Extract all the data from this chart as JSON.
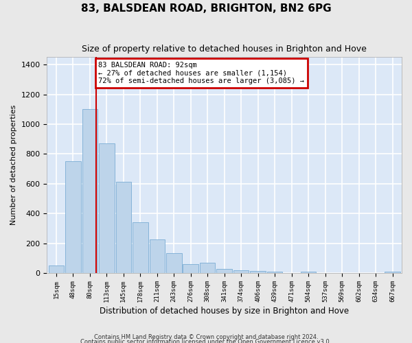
{
  "title": "83, BALSDEAN ROAD, BRIGHTON, BN2 6PG",
  "subtitle": "Size of property relative to detached houses in Brighton and Hove",
  "xlabel": "Distribution of detached houses by size in Brighton and Hove",
  "ylabel": "Number of detached properties",
  "footnote1": "Contains HM Land Registry data © Crown copyright and database right 2024.",
  "footnote2": "Contains public sector information licensed under the Open Government Licence v3.0.",
  "categories": [
    "15sqm",
    "48sqm",
    "80sqm",
    "113sqm",
    "145sqm",
    "178sqm",
    "211sqm",
    "243sqm",
    "276sqm",
    "308sqm",
    "341sqm",
    "374sqm",
    "406sqm",
    "439sqm",
    "471sqm",
    "504sqm",
    "537sqm",
    "569sqm",
    "602sqm",
    "634sqm",
    "667sqm"
  ],
  "values": [
    50,
    750,
    1100,
    870,
    615,
    340,
    225,
    135,
    60,
    70,
    30,
    20,
    15,
    10,
    0,
    10,
    0,
    0,
    0,
    0,
    10
  ],
  "bar_color": "#bdd4ea",
  "bar_edge_color": "#7aadd4",
  "bg_color": "#dce8f7",
  "grid_color": "#ffffff",
  "vline_color": "#cc0000",
  "vline_x": 2.36,
  "ann_line1": "83 BALSDEAN ROAD: 92sqm",
  "ann_line2": "← 27% of detached houses are smaller (1,154)",
  "ann_line3": "72% of semi-detached houses are larger (3,085) →",
  "ann_box_fc": "#ffffff",
  "ann_box_ec": "#cc0000",
  "ylim": [
    0,
    1450
  ],
  "yticks": [
    0,
    200,
    400,
    600,
    800,
    1000,
    1200,
    1400
  ],
  "fig_bg": "#e8e8e8",
  "title_fontsize": 11,
  "subtitle_fontsize": 9
}
